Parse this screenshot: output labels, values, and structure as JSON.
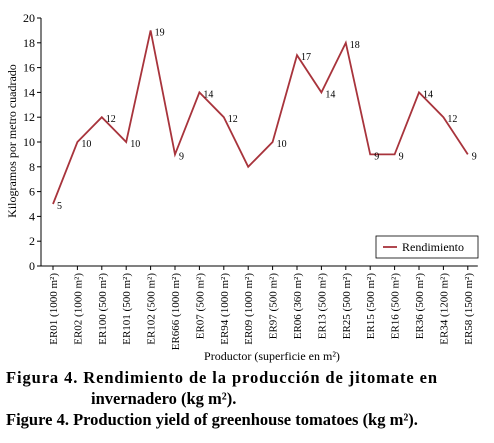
{
  "chart_data": {
    "type": "line",
    "categories": [
      "ER01 (1000 m²)",
      "ER02 (1000 m²)",
      "ER100 (500 m²)",
      "ER101 (500 m²)",
      "ER102 (500 m²)",
      "ER666 (1000 m²)",
      "ER07 (500 m²)",
      "ER94 (1000 m²)",
      "ER09 (1000 m²)",
      "ER97 (500 m²)",
      "ER06 (360 m²)",
      "ER13 (500 m²)",
      "ER25 (500 m²)",
      "ER15 (500 m²)",
      "ER16 (500 m²)",
      "ER36 (500 m²)",
      "ER34 (1200 m²)",
      "ER58 (1500 m²)"
    ],
    "series": [
      {
        "name": "Rendimiento",
        "values": [
          5,
          10,
          12,
          10,
          19,
          9,
          14,
          12,
          8,
          10,
          17,
          14,
          18,
          9,
          9,
          14,
          12,
          9
        ]
      }
    ],
    "data_labels": [
      "5",
      "10",
      "12",
      "10",
      "19",
      "9",
      "14",
      "12",
      "",
      "10",
      "17",
      "14",
      "18",
      "9",
      "9",
      "14",
      "12",
      "9"
    ],
    "xlabel": "Productor (superficie en m²)",
    "ylabel": "Kilogramos por metro cuadrado",
    "ylim": [
      0,
      20
    ],
    "yticks": [
      0,
      2,
      4,
      6,
      8,
      10,
      12,
      14,
      16,
      18,
      20
    ],
    "grid": false,
    "legend_position": "bottom-right",
    "line_color": "#a8343c"
  },
  "caption": {
    "es_line1": "Figura 4. Rendimiento de la producción de jitomate en",
    "es_line2": "invernadero (kg m²).",
    "en": "Figure 4. Production yield of greenhouse tomatoes (kg m²)."
  }
}
